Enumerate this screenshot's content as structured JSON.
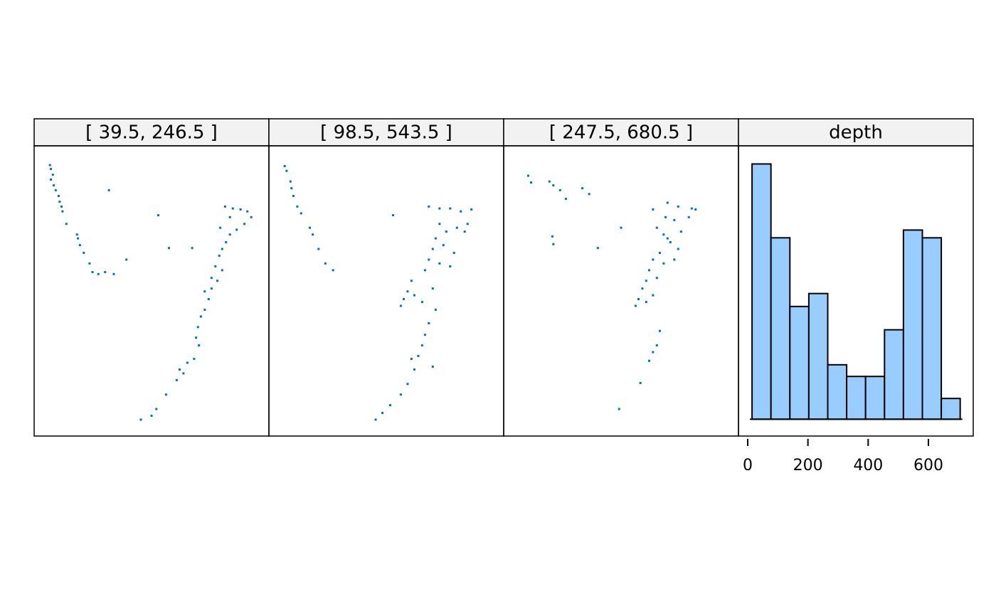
{
  "chart_data": [
    {
      "type": "scatter",
      "title": "[ 39.5, 246.5 ]",
      "color": "#0072b2",
      "xlim": [
        164.77,
        189.03
      ],
      "ylim": [
        -39.7,
        -9.6
      ],
      "x": [
        166.4,
        166.5,
        166.7,
        166.5,
        166.8,
        167.0,
        167.3,
        167.4,
        167.6,
        167.7,
        168.1,
        169.2,
        169.3,
        169.5,
        169.9,
        170.5,
        170.8,
        171.4,
        172.1,
        173.0,
        172.5,
        174.3,
        177.6,
        178.7,
        181.1,
        184.5,
        185.3,
        186.1,
        186.8,
        187.2,
        186.5,
        185.7,
        185.0,
        184.6,
        184.2,
        183.9,
        183.5,
        184.2,
        183.7,
        183.1,
        182.8,
        182.4,
        182.0,
        181.7,
        181.5,
        181.8,
        181.3,
        180.6,
        179.8,
        180.2,
        179.5,
        178.4,
        177.4,
        176.9,
        175.8,
        184.0,
        185.0,
        183.1,
        182.4
      ],
      "y": [
        -11.6,
        -12.0,
        -12.6,
        -13.1,
        -13.7,
        -14.2,
        -14.8,
        -15.4,
        -15.9,
        -16.4,
        -17.7,
        -18.8,
        -19.2,
        -19.9,
        -20.7,
        -21.8,
        -22.7,
        -22.9,
        -22.7,
        -22.9,
        -14.2,
        -21.4,
        -16.8,
        -20.2,
        -20.2,
        -15.9,
        -16.1,
        -16.2,
        -16.4,
        -17.0,
        -17.7,
        -18.3,
        -18.8,
        -19.6,
        -20.3,
        -21.0,
        -22.1,
        -22.5,
        -23.6,
        -24.4,
        -25.5,
        -26.6,
        -27.3,
        -28.4,
        -29.5,
        -30.3,
        -31.7,
        -32.1,
        -32.8,
        -33.2,
        -33.9,
        -35.4,
        -36.9,
        -37.6,
        -38.0,
        -18.1,
        -17.0,
        -23.3,
        -24.7
      ]
    },
    {
      "type": "scatter",
      "title": "[ 98.5, 543.5 ]",
      "color": "#0072b2",
      "xlim": [
        164.77,
        189.03
      ],
      "ylim": [
        -39.7,
        -9.6
      ],
      "x": [
        166.4,
        166.6,
        167.0,
        167.1,
        167.3,
        167.7,
        168.1,
        169.0,
        169.3,
        169.9,
        170.6,
        171.4,
        177.6,
        181.3,
        182.4,
        183.5,
        184.6,
        185.7,
        185.3,
        184.2,
        183.1,
        182.0,
        182.8,
        183.9,
        181.7,
        181.3,
        182.4,
        183.5,
        185.0,
        180.9,
        179.5,
        179.1,
        179.8,
        178.7,
        180.6,
        181.7,
        182.0,
        181.3,
        180.9,
        180.6,
        180.2,
        179.5,
        181.7,
        179.8,
        179.1,
        178.4,
        177.3,
        176.5,
        175.8,
        178.4,
        182.4
      ],
      "y": [
        -11.7,
        -12.2,
        -13.3,
        -14.0,
        -14.8,
        -15.9,
        -16.6,
        -18.1,
        -18.8,
        -20.3,
        -21.8,
        -22.5,
        -16.8,
        -15.9,
        -16.1,
        -16.1,
        -16.4,
        -16.2,
        -17.7,
        -18.1,
        -18.5,
        -19.2,
        -19.9,
        -20.7,
        -20.3,
        -21.4,
        -21.8,
        -22.1,
        -18.5,
        -22.5,
        -23.6,
        -24.7,
        -25.1,
        -25.5,
        -25.8,
        -24.4,
        -26.6,
        -28.0,
        -29.2,
        -30.3,
        -31.4,
        -31.7,
        -32.5,
        -32.8,
        -34.3,
        -35.4,
        -36.5,
        -37.3,
        -38.0,
        -26.2,
        -17.7
      ]
    },
    {
      "type": "scatter",
      "title": "[ 247.5, 680.5 ]",
      "color": "#0072b2",
      "xlim": [
        164.77,
        189.03
      ],
      "ylim": [
        -39.7,
        -9.6
      ],
      "x": [
        167.3,
        167.6,
        169.5,
        169.9,
        170.6,
        171.2,
        172.9,
        173.6,
        169.8,
        169.9,
        174.5,
        176.9,
        180.2,
        181.7,
        182.8,
        184.2,
        184.6,
        183.9,
        182.4,
        180.6,
        181.3,
        182.0,
        182.8,
        180.9,
        180.2,
        181.3,
        179.8,
        180.6,
        179.5,
        179.1,
        178.7,
        178.4,
        179.5,
        180.2,
        181.7,
        183.1,
        180.9,
        180.6,
        180.2,
        179.8,
        178.9,
        176.7,
        181.5,
        182.4
      ],
      "y": [
        -12.7,
        -13.4,
        -13.3,
        -13.7,
        -14.2,
        -15.1,
        -14.0,
        -14.6,
        -19.0,
        -19.8,
        -20.2,
        -18.1,
        -16.2,
        -15.5,
        -15.9,
        -16.1,
        -16.2,
        -17.0,
        -17.3,
        -18.1,
        -18.8,
        -19.6,
        -20.3,
        -20.7,
        -21.4,
        -21.8,
        -22.5,
        -23.3,
        -23.6,
        -24.4,
        -25.5,
        -26.2,
        -25.8,
        -25.1,
        -19.2,
        -18.5,
        -28.8,
        -30.3,
        -31.0,
        -31.9,
        -34.2,
        -36.9,
        -17.0,
        -21.4
      ]
    },
    {
      "type": "histogram",
      "title": "depth",
      "color": "#99ccff",
      "bins": [
        14.4,
        77.2,
        140.1,
        202.9,
        265.8,
        328.6,
        391.4,
        454.3,
        517.1,
        580.0,
        642.8,
        705.6
      ],
      "values": [
        19.7,
        14.0,
        8.7,
        9.7,
        4.2,
        3.3,
        3.3,
        6.9,
        14.6,
        14.0,
        1.6
      ],
      "xlim": [
        -30.7,
        748.9
      ],
      "ylim": [
        -1.3,
        21.1
      ],
      "xticks": [
        0,
        200,
        400,
        600
      ]
    }
  ]
}
